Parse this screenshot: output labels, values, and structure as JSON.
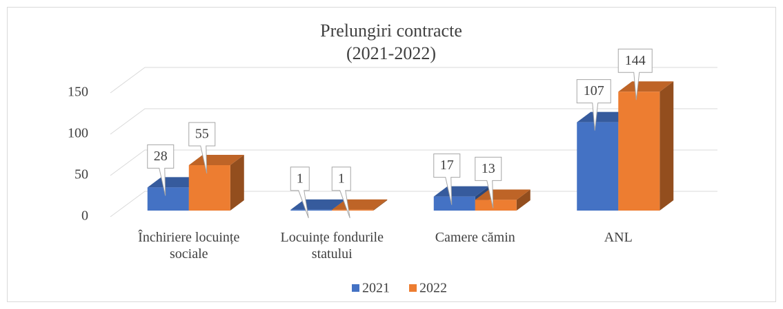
{
  "chart_data": {
    "type": "bar3d",
    "title": "Prelungiri contracte",
    "subtitle": "(2021-2022)",
    "categories": [
      "Închiriere locuințe sociale",
      "Locuințe fondurile statului",
      "Camere cămin",
      "ANL"
    ],
    "series": [
      {
        "name": "2021",
        "color": "#4472c4",
        "values": [
          28,
          1,
          17,
          107
        ]
      },
      {
        "name": "2022",
        "color": "#ed7d31",
        "values": [
          55,
          1,
          13,
          144
        ]
      }
    ],
    "ylim": [
      0,
      150
    ],
    "yticks": [
      0,
      50,
      100,
      150
    ],
    "grid": true,
    "legend": "bottom"
  }
}
